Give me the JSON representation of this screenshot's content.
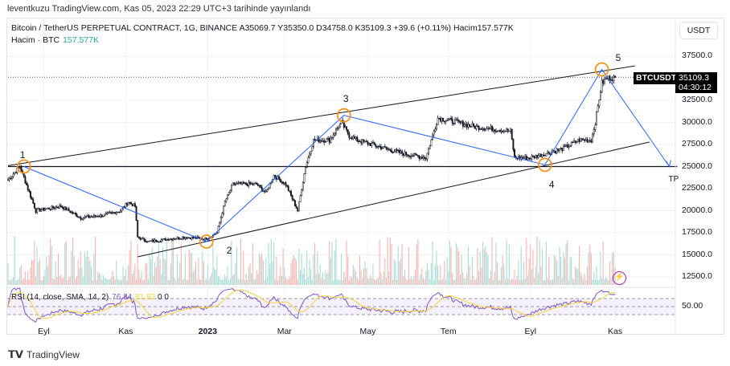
{
  "published": "leventkuzu TradingView.com, Kas 05, 2023 22:29 UTC+3 tarihinde yayınlandı",
  "legend": {
    "line": "Bitcoin / TetherUS PERPETUAL CONTRACT, 1G, BINANCE  A35069.7  Y35350.0  D34758.0  K35109.3  +39.6 (+0.11%)  Hacim157.577K",
    "volume_label": "Hacim · BTC",
    "volume_value": "157.577K"
  },
  "currency": "USDT",
  "symbol_tag": "BTCUSDT.P",
  "last_price": "35109.3",
  "countdown": "04:30:12",
  "rsi": {
    "label": "RSI (14, close, SMA, 14, 2)",
    "rsi": "76.84",
    "sma": "81.82",
    "extra": "0 0",
    "level": "50.00"
  },
  "brand": "TradingView",
  "colors": {
    "up": "#26a69a",
    "down": "#131722",
    "blue": "#2962ff",
    "orange": "#f7931a",
    "rsi": "#7e57c2",
    "rsi_sma": "#f7d33b"
  },
  "chart_data": {
    "type": "candlestick",
    "title": "BTCUSDT.P 1D",
    "x_ticks": [
      {
        "label": "Eyl",
        "day": 27
      },
      {
        "label": "Kas",
        "day": 89
      },
      {
        "label": "2023",
        "day": 151
      },
      {
        "label": "Mar",
        "day": 209
      },
      {
        "label": "May",
        "day": 272
      },
      {
        "label": "Tem",
        "day": 333
      },
      {
        "label": "Eyl",
        "day": 395
      },
      {
        "label": "Kas",
        "day": 459
      }
    ],
    "y_ticks": [
      "37500.0",
      "32500.0",
      "30000.0",
      "27500.0",
      "25000.0",
      "22500.0",
      "20000.0",
      "17500.0",
      "15000.0",
      "12500.0"
    ],
    "y_tick_values": [
      37500,
      32500,
      30000,
      27500,
      25000,
      22500,
      20000,
      17500,
      15000,
      12500
    ],
    "ylim": [
      11500,
      40000
    ],
    "close_path": [
      [
        0,
        23500
      ],
      [
        9,
        25000
      ],
      [
        15,
        22500
      ],
      [
        21,
        20000
      ],
      [
        40,
        20500
      ],
      [
        55,
        19200
      ],
      [
        73,
        19500
      ],
      [
        85,
        20000
      ],
      [
        91,
        21000
      ],
      [
        96,
        20500
      ],
      [
        98,
        17000
      ],
      [
        106,
        16500
      ],
      [
        122,
        16800
      ],
      [
        134,
        17000
      ],
      [
        149,
        16800
      ],
      [
        158,
        17500
      ],
      [
        164,
        21000
      ],
      [
        170,
        23000
      ],
      [
        188,
        23000
      ],
      [
        195,
        22000
      ],
      [
        201,
        24000
      ],
      [
        210,
        23000
      ],
      [
        219,
        20000
      ],
      [
        225,
        25000
      ],
      [
        231,
        28000
      ],
      [
        243,
        28000
      ],
      [
        252,
        30000
      ],
      [
        258,
        28500
      ],
      [
        264,
        28000
      ],
      [
        286,
        27000
      ],
      [
        298,
        26500
      ],
      [
        316,
        26000
      ],
      [
        322,
        29000
      ],
      [
        325,
        30500
      ],
      [
        340,
        30000
      ],
      [
        353,
        29500
      ],
      [
        365,
        29300
      ],
      [
        380,
        29000
      ],
      [
        383,
        26000
      ],
      [
        395,
        26000
      ],
      [
        407,
        26500
      ],
      [
        419,
        27000
      ],
      [
        432,
        28000
      ],
      [
        441,
        28000
      ],
      [
        444,
        30000
      ],
      [
        449,
        34500
      ],
      [
        453,
        35000
      ],
      [
        459,
        35109
      ]
    ],
    "wave_points": [
      {
        "label": "1",
        "day": 12,
        "price": 25000
      },
      {
        "label": "2",
        "day": 150,
        "price": 16500
      },
      {
        "label": "3",
        "day": 254,
        "price": 30800
      },
      {
        "label": "4",
        "day": 406,
        "price": 25200
      },
      {
        "label": "5",
        "day": 449,
        "price": 36000
      },
      {
        "label": "TP",
        "day": 500,
        "price": 25000
      }
    ],
    "upper_channel": [
      [
        0,
        25100
      ],
      [
        474,
        36400
      ]
    ],
    "lower_channel": [
      [
        98,
        14770
      ],
      [
        485,
        27770
      ]
    ],
    "horizontal_level": 25000
  }
}
